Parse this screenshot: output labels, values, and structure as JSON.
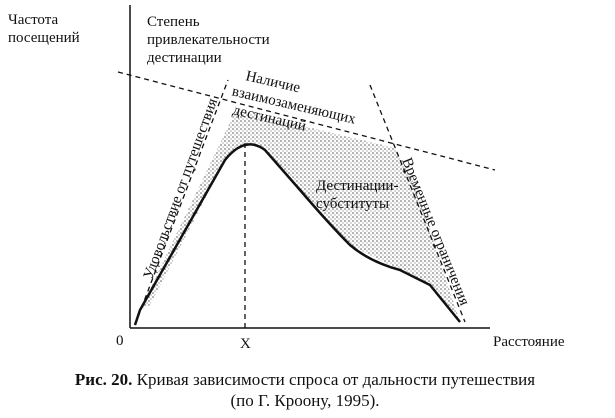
{
  "diagram": {
    "y_axis_label": [
      "Частота",
      "посещений"
    ],
    "attractiveness_label": [
      "Степень",
      "привлекательности",
      "дестинации"
    ],
    "substitutes_label": [
      "Наличие",
      "взаимозаменяющих",
      "дестинаций"
    ],
    "pleasure_label": "Удовольствие от путешествия",
    "substitute_area_label": [
      "Дестинации-",
      "субституты"
    ],
    "time_label": "Временные ограничения",
    "origin_label": "0",
    "x_mark_label": "X",
    "x_axis_label": "Расстояние"
  },
  "caption": {
    "number": "Рис. 20.",
    "lines": [
      "Кривая зависимости спроса от дальности путешествия",
      "(по Г. Кроону, 1995)."
    ]
  }
}
